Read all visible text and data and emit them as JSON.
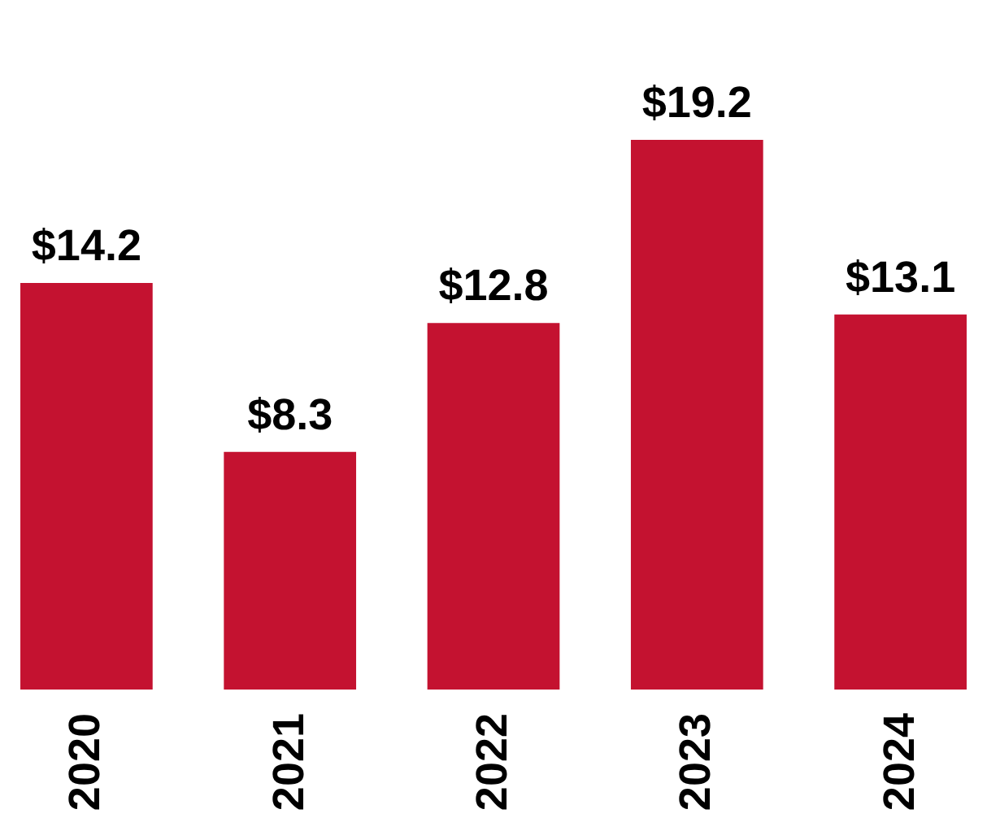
{
  "chart_data": {
    "type": "bar",
    "categories": [
      "2020",
      "2021",
      "2022",
      "2023",
      "2024"
    ],
    "values": [
      14.2,
      8.3,
      12.8,
      19.2,
      13.1
    ],
    "value_labels": [
      "$14.2",
      "$8.3",
      "$12.8",
      "$19.2",
      "$13.1"
    ],
    "color": "#c41230"
  }
}
